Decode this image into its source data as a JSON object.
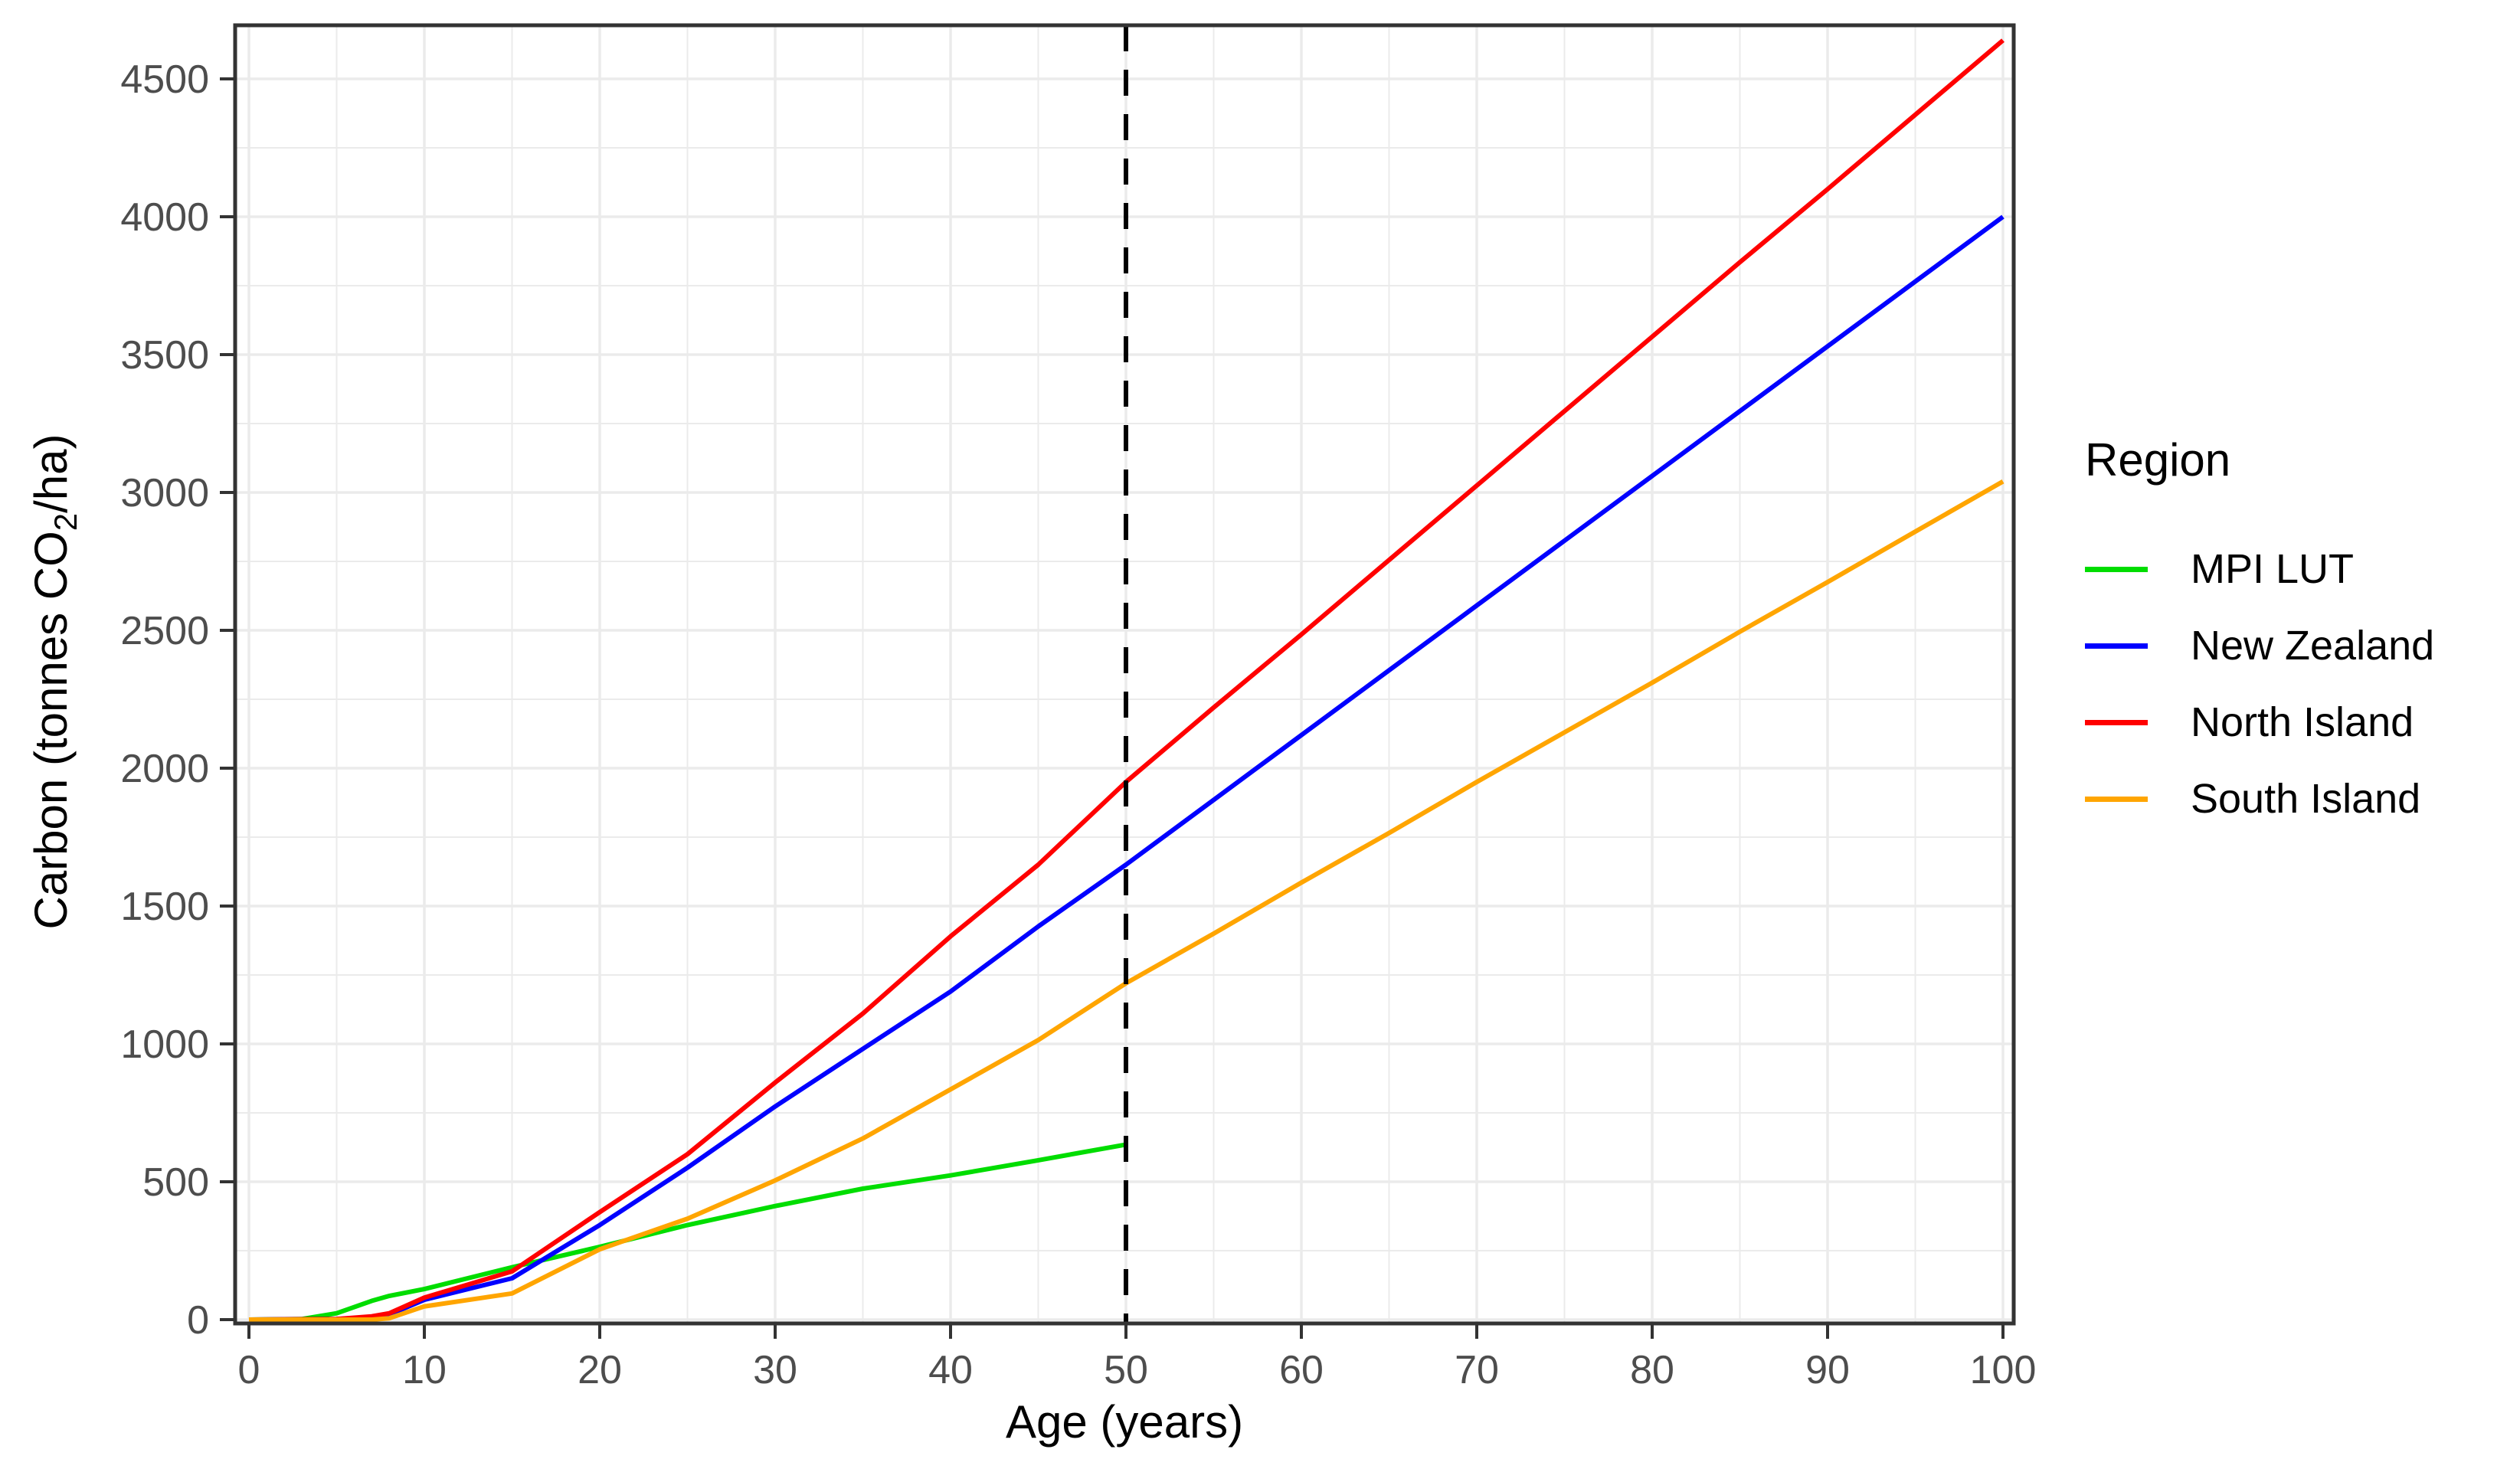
{
  "figure": {
    "background": "#ffffff",
    "panel_border_color": "#333333",
    "grid_color": "#ebebeb",
    "tick_label_color": "#4d4d4d",
    "ylabel_parts": {
      "pre": "Carbon (tonnes CO",
      "sub": "2",
      "post": "/ha)"
    }
  },
  "chart_data": {
    "type": "line",
    "title": "",
    "xlabel": "Age (years)",
    "ylabel": "Carbon (tonnes CO2/ha)",
    "legend_title": "Region",
    "legend_position": "right",
    "grid": "major and minor, light grey on white, boxed panel",
    "xlim": [
      0,
      100
    ],
    "ylim": [
      0,
      4700
    ],
    "x_ticks": [
      0,
      10,
      20,
      30,
      40,
      50,
      60,
      70,
      80,
      90,
      100
    ],
    "y_ticks": [
      0,
      500,
      1000,
      1500,
      2000,
      2500,
      3000,
      3500,
      4000,
      4500
    ],
    "vline": {
      "x": 50,
      "style": "dashed",
      "color": "#000000"
    },
    "series": [
      {
        "name": "MPI LUT",
        "color": "#00DD00",
        "x": [
          0,
          3,
          5,
          7,
          8,
          10,
          15,
          20,
          25,
          30,
          35,
          40,
          45,
          50
        ],
        "y": [
          0,
          2,
          23,
          68,
          86,
          111,
          190,
          264,
          343,
          412,
          475,
          523,
          578,
          635
        ]
      },
      {
        "name": "New Zealand",
        "color": "#0000FF",
        "x": [
          0,
          5,
          7,
          8,
          10,
          15,
          20,
          25,
          30,
          35,
          40,
          45,
          50,
          55,
          60,
          65,
          70,
          75,
          80,
          85,
          90,
          95,
          100
        ],
        "y": [
          0,
          2,
          8,
          18,
          72,
          150,
          343,
          551,
          773,
          982,
          1190,
          1426,
          1650,
          1885,
          2120,
          2355,
          2590,
          2825,
          3060,
          3295,
          3530,
          3765,
          4000
        ]
      },
      {
        "name": "North Island",
        "color": "#FF0000",
        "x": [
          0,
          5,
          7,
          8,
          10,
          15,
          20,
          25,
          30,
          35,
          40,
          45,
          50,
          55,
          60,
          65,
          70,
          75,
          80,
          85,
          90,
          95,
          100
        ],
        "y": [
          0,
          2,
          12,
          23,
          80,
          175,
          390,
          600,
          860,
          1110,
          1390,
          1650,
          1950,
          2220,
          2485,
          2755,
          3025,
          3295,
          3565,
          3835,
          4100,
          4370,
          4640
        ]
      },
      {
        "name": "South Island",
        "color": "#FFA500",
        "x": [
          0,
          5,
          7,
          8,
          10,
          15,
          20,
          25,
          30,
          35,
          40,
          45,
          50,
          55,
          60,
          65,
          70,
          75,
          80,
          85,
          90,
          95,
          100
        ],
        "y": [
          0,
          0,
          0,
          5,
          48,
          95,
          255,
          366,
          505,
          657,
          835,
          1014,
          1220,
          1400,
          1585,
          1765,
          1950,
          2130,
          2310,
          2495,
          2675,
          2858,
          3040
        ]
      }
    ]
  }
}
